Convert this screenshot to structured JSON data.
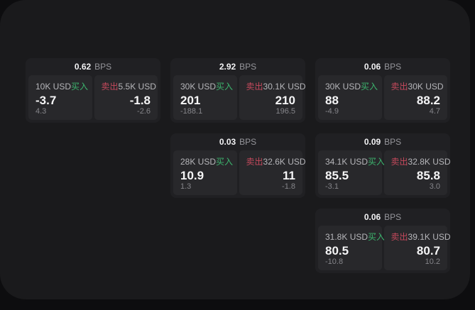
{
  "labels": {
    "buy": "买入",
    "sell": "卖出",
    "bps": "BPS"
  },
  "colors": {
    "background": "#0d0d0f",
    "surface": "#1a1a1c",
    "card": "#202023",
    "panel": "#28282b",
    "buy_green": "#3cb46e",
    "sell_red": "#c5495c"
  },
  "cards": [
    {
      "bps": "0.62",
      "buy": {
        "amount": "10K USD",
        "value": "-3.7",
        "sub": "4.3"
      },
      "sell": {
        "amount": "5.5K USD",
        "value": "-1.8",
        "sub": "-2.6"
      }
    },
    {
      "bps": "2.92",
      "buy": {
        "amount": "30K USD",
        "value": "201",
        "sub": "-188.1"
      },
      "sell": {
        "amount": "30.1K USD",
        "value": "210",
        "sub": "196.5"
      }
    },
    {
      "bps": "0.06",
      "buy": {
        "amount": "30K USD",
        "value": "88",
        "sub": "-4.9"
      },
      "sell": {
        "amount": "30K USD",
        "value": "88.2",
        "sub": "4.7"
      }
    },
    {
      "bps": "0.03",
      "buy": {
        "amount": "28K USD",
        "value": "10.9",
        "sub": "1.3"
      },
      "sell": {
        "amount": "32.6K USD",
        "value": "11",
        "sub": "-1.8"
      }
    },
    {
      "bps": "0.09",
      "buy": {
        "amount": "34.1K USD",
        "value": "85.5",
        "sub": "-3.1"
      },
      "sell": {
        "amount": "32.8K USD",
        "value": "85.8",
        "sub": "3.0"
      }
    },
    {
      "bps": "0.06",
      "buy": {
        "amount": "31.8K USD",
        "value": "80.5",
        "sub": "-10.8"
      },
      "sell": {
        "amount": "39.1K USD",
        "value": "80.7",
        "sub": "10.2"
      }
    }
  ]
}
